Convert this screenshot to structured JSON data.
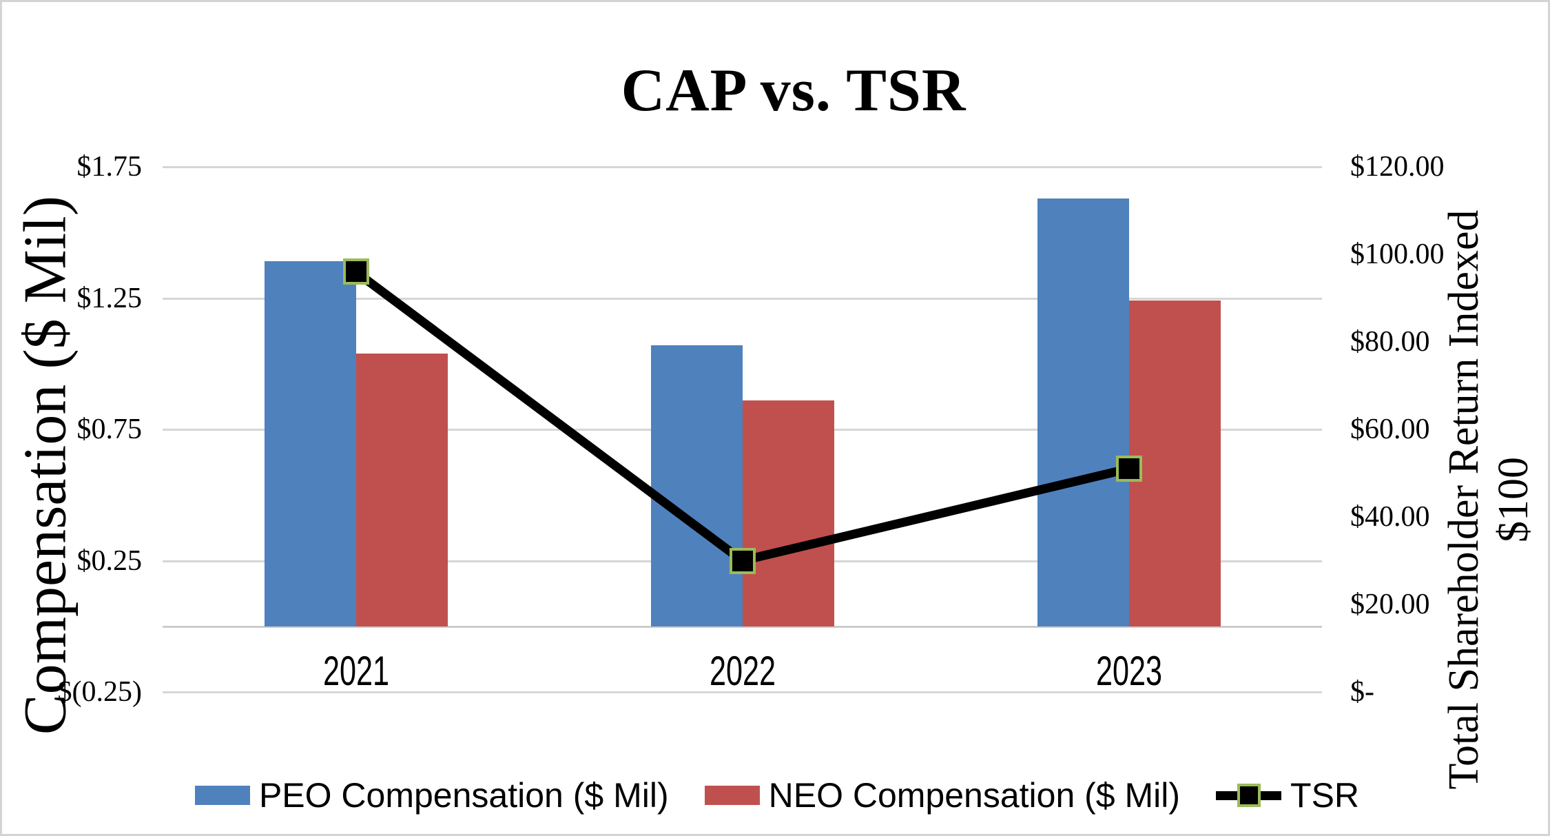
{
  "title": "CAP vs. TSR",
  "chart_data": {
    "type": "bar",
    "title": "CAP vs. TSR",
    "categories": [
      "2021",
      "2022",
      "2023"
    ],
    "series": [
      {
        "name": "PEO Compensation ($ Mil)",
        "chart_type": "bar",
        "axis": "left",
        "color": "#4F81BD",
        "values": [
          1.39,
          1.07,
          1.63
        ]
      },
      {
        "name": "NEO Compensation ($ Mil)",
        "chart_type": "bar",
        "axis": "left",
        "color": "#C0504D",
        "values": [
          1.04,
          0.86,
          1.24
        ]
      },
      {
        "name": "TSR",
        "chart_type": "line",
        "axis": "right",
        "color": "#000000",
        "marker_fill": "#000000",
        "marker_border": "#9BBB59",
        "values": [
          96,
          30,
          51
        ]
      }
    ],
    "left_axis": {
      "title": "Compensation ($ Mil)",
      "min": -0.25,
      "max": 1.75,
      "ticks": [
        {
          "value": 1.75,
          "label": "$1.75"
        },
        {
          "value": 1.25,
          "label": "$1.25"
        },
        {
          "value": 0.75,
          "label": "$0.75"
        },
        {
          "value": 0.25,
          "label": "$0.25"
        },
        {
          "value": -0.25,
          "label": "$(0.25)"
        }
      ]
    },
    "right_axis": {
      "title_line1": "Total Shareholder Return Indexed",
      "title_line2": "$100",
      "min": 0,
      "max": 120,
      "ticks": [
        {
          "value": 120,
          "label": "$120.00"
        },
        {
          "value": 100,
          "label": "$100.00"
        },
        {
          "value": 80,
          "label": "$80.00"
        },
        {
          "value": 60,
          "label": "$60.00"
        },
        {
          "value": 40,
          "label": "$40.00"
        },
        {
          "value": 20,
          "label": "$20.00"
        },
        {
          "value": 0,
          "label": "$-"
        }
      ]
    },
    "grid": true,
    "legend_position": "bottom",
    "gridline_color": "#d6d6d6",
    "zero_axis_color": "#cccccc"
  }
}
